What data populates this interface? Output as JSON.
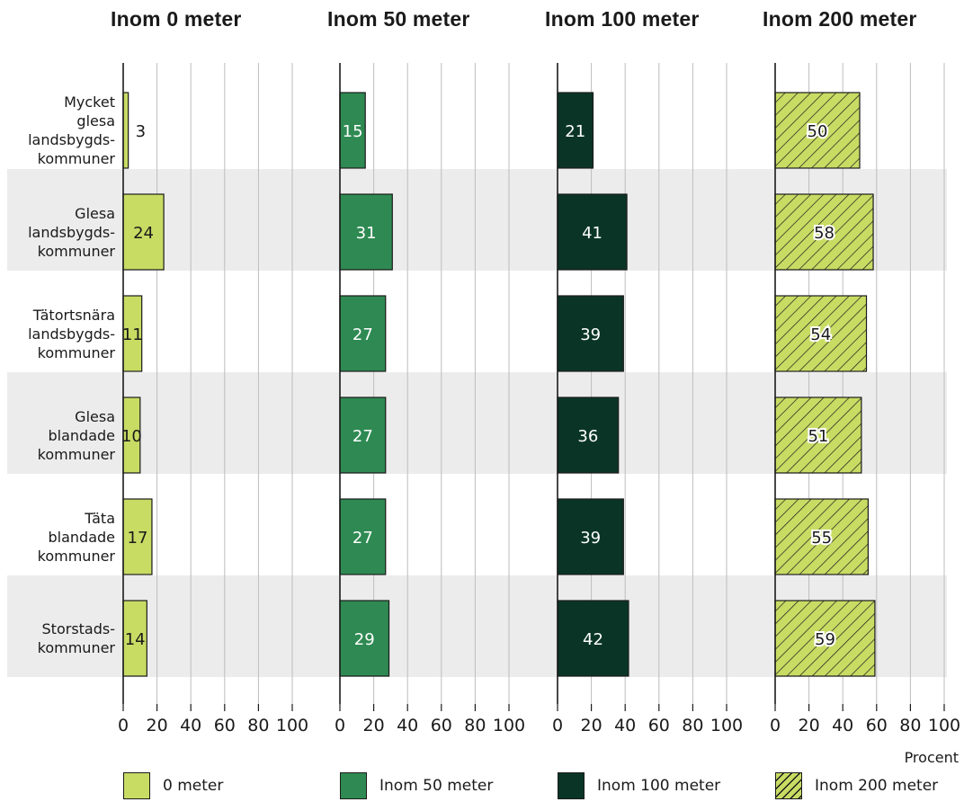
{
  "chart_data": {
    "type": "bar",
    "orientation": "horizontal",
    "unit_label": "Procent",
    "categories": [
      "Mycket\nglesa\nlandsbygds-\nkommuner",
      "Glesa\nlandsbygds-\nkommuner",
      "Tätortsnära\nlandsbygds-\nkommuner",
      "Glesa\nblandade\nkommuner",
      "Täta\nblandade\nkommuner",
      "Storstads-\nkommuner"
    ],
    "xlim": [
      0,
      100
    ],
    "ticks": [
      "0",
      "20",
      "40",
      "60",
      "80",
      "100"
    ],
    "grid": true,
    "legend_position": "bottom",
    "panels": [
      {
        "title": "Inom 0 meter",
        "series_name": "0 meter",
        "color": "#c8dc64",
        "pattern": "solid",
        "values": [
          3,
          24,
          11,
          10,
          17,
          14
        ]
      },
      {
        "title": "Inom 50 meter",
        "series_name": "Inom 50 meter",
        "color": "#2e8a52",
        "pattern": "solid",
        "values": [
          15,
          31,
          27,
          27,
          27,
          29
        ]
      },
      {
        "title": "Inom 100 meter",
        "series_name": "Inom 100 meter",
        "color": "#0a3526",
        "pattern": "solid",
        "values": [
          21,
          41,
          39,
          36,
          39,
          42
        ]
      },
      {
        "title": "Inom 200 meter",
        "series_name": "Inom 200 meter",
        "color": "#c8dc64",
        "pattern": "hatched",
        "values": [
          50,
          58,
          54,
          51,
          55,
          59
        ]
      }
    ]
  }
}
